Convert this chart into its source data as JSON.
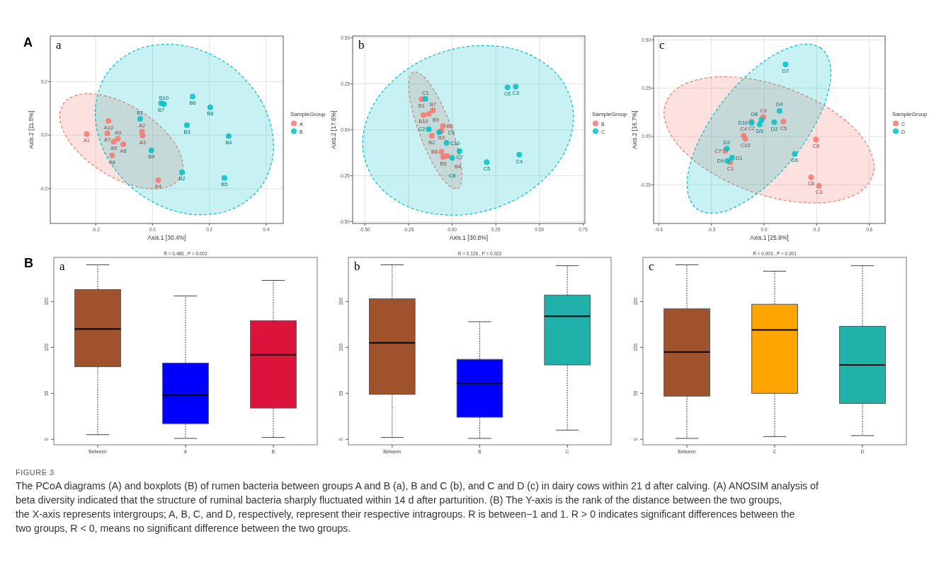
{
  "chart_data": [
    {
      "type": "scatter",
      "subtitle": "a",
      "xlabel": "Axis.1 [30.4%]",
      "ylabel": "Axis.2 [11.5%]",
      "legend_title": "SampleGroup",
      "legend": "right",
      "grid": true,
      "marker": "circle",
      "xlim": [
        -0.36,
        0.46
      ],
      "ylim": [
        -0.33,
        0.37
      ],
      "xticks": [
        -0.2,
        {
          "value": 0,
          "label": "0.0"
        },
        0.2,
        0.4
      ],
      "yticks": [
        -0.2,
        {
          "value": 0,
          "label": "0.0"
        },
        0.2
      ],
      "series": [
        {
          "type": "area",
          "marker": "none",
          "line_style": "dashed",
          "color": "#f8766d",
          "x": [
            0.107,
            0.078,
            -0.002,
            -0.11,
            -0.218,
            -0.298,
            -0.327,
            -0.298,
            -0.218,
            -0.11,
            -0.002,
            0.078
          ],
          "values": [
            -0.118,
            -0.03,
            0.06,
            0.127,
            0.155,
            0.134,
            0.072,
            -0.016,
            -0.106,
            -0.173,
            -0.201,
            -0.18
          ]
        },
        {
          "type": "area",
          "marker": "none",
          "line_style": "dashed",
          "color": "#00bfc4",
          "x": [
            0.426,
            0.384,
            0.269,
            0.112,
            -0.045,
            -0.16,
            -0.202,
            -0.16,
            -0.045,
            0.112,
            0.269,
            0.384
          ],
          "values": [
            -0.04,
            0.125,
            0.262,
            0.334,
            0.323,
            0.231,
            0.082,
            -0.083,
            -0.22,
            -0.292,
            -0.281,
            -0.189
          ]
        },
        {
          "name": "A",
          "color": "#f8766d",
          "x": [
            -0.232,
            -0.155,
            -0.159,
            -0.137,
            -0.122,
            -0.103,
            -0.142,
            -0.037,
            -0.035,
            0.02
          ],
          "values": [
            0.004,
            0.053,
            0.007,
            -0.024,
            -0.014,
            -0.034,
            -0.076,
            0.013,
            -0.002,
            -0.168
          ]
        },
        {
          "name": "B",
          "color": "#00bfc4",
          "x": [
            -0.044,
            -0.004,
            0.03,
            0.04,
            0.141,
            0.203,
            0.121,
            0.268,
            0.104,
            0.253
          ],
          "values": [
            0.061,
            -0.057,
            0.119,
            0.116,
            0.144,
            0.104,
            0.037,
            -0.004,
            -0.139,
            -0.16
          ]
        }
      ],
      "annotations": [
        "A",
        {
          "text": "A1",
          "x": -0.232,
          "y": 0.004
        },
        {
          "text": "A10",
          "x": -0.155,
          "y": 0.053
        },
        {
          "text": "A7",
          "x": -0.159,
          "y": 0.007
        },
        {
          "text": "A5",
          "x": -0.137,
          "y": -0.024
        },
        {
          "text": "A9",
          "x": -0.122,
          "y": -0.014
        },
        {
          "text": "A8",
          "x": -0.103,
          "y": -0.034
        },
        {
          "text": "A6",
          "x": -0.142,
          "y": -0.076
        },
        {
          "text": "A2",
          "x": -0.037,
          "y": 0.013
        },
        {
          "text": "A3",
          "x": -0.035,
          "y": -0.002
        },
        {
          "text": "A4",
          "x": 0.02,
          "y": -0.168
        },
        {
          "text": "B1",
          "x": -0.044,
          "y": 0.061
        },
        {
          "text": "B9",
          "x": -0.004,
          "y": -0.057
        },
        {
          "text": "B7",
          "x": 0.03,
          "y": 0.119
        },
        {
          "text": "B10",
          "x": 0.04,
          "y": 0.116
        },
        {
          "text": "B6",
          "x": 0.141,
          "y": 0.144
        },
        {
          "text": "B8",
          "x": 0.203,
          "y": 0.104
        },
        {
          "text": "B3",
          "x": 0.121,
          "y": 0.037
        },
        {
          "text": "B4",
          "x": 0.268,
          "y": -0.004
        },
        {
          "text": "B2",
          "x": 0.104,
          "y": -0.139
        },
        {
          "text": "B5",
          "x": 0.253,
          "y": -0.16
        }
      ]
    },
    {
      "type": "scatter",
      "subtitle": "b",
      "xlabel": "Axis.1 [30.8%]",
      "ylabel": "Axis.2 [17.6%]",
      "legend_title": "SampleGroup",
      "legend": "right",
      "grid": true,
      "marker": "circle",
      "xlim": [
        -0.57,
        0.76
      ],
      "ylim": [
        -0.51,
        0.51
      ],
      "xticks": [
        {
          "value": -0.5,
          "label": "-0.50"
        },
        -0.25,
        {
          "value": 0,
          "label": "0.00"
        },
        0.25,
        {
          "value": 0.5,
          "label": "0.50"
        },
        0.75
      ],
      "yticks": [
        {
          "value": -0.5,
          "label": "-0.50"
        },
        -0.25,
        {
          "value": 0,
          "label": "0.00"
        },
        0.25,
        {
          "value": 0.5,
          "label": "0.50"
        }
      ],
      "series": [
        {
          "type": "area",
          "marker": "none",
          "line_style": "dashed",
          "color": "#f8766d",
          "x": [
            0.056,
            0.036,
            -0.02,
            -0.096,
            -0.172,
            -0.228,
            -0.248,
            -0.228,
            -0.172,
            -0.096,
            -0.02,
            0.036
          ],
          "values": [
            -0.247,
            -0.111,
            0.053,
            0.203,
            0.297,
            0.311,
            0.241,
            0.105,
            -0.059,
            -0.209,
            -0.303,
            -0.317
          ]
        },
        {
          "type": "area",
          "marker": "none",
          "line_style": "dashed",
          "color": "#00bfc4",
          "x": [
            0.695,
            0.614,
            0.393,
            0.091,
            -0.211,
            -0.432,
            -0.513,
            -0.432,
            -0.211,
            0.091,
            0.393,
            0.614
          ],
          "values": [
            0.067,
            0.286,
            0.428,
            0.454,
            0.358,
            0.165,
            -0.073,
            -0.292,
            -0.434,
            -0.46,
            -0.364,
            -0.17
          ]
        },
        {
          "name": "B",
          "color": "#f8766d",
          "x": [
            -0.175,
            -0.165,
            -0.134,
            -0.11,
            -0.053,
            -0.062,
            -0.116,
            -0.061,
            -0.051,
            -0.028
          ],
          "values": [
            0.166,
            0.08,
            0.087,
            0.106,
            0.02,
            -0.006,
            -0.033,
            -0.12,
            -0.148,
            -0.142
          ]
        },
        {
          "name": "C",
          "color": "#00bfc4",
          "x": [
            -0.153,
            -0.134,
            -0.074,
            -0.032,
            0.042,
            0.0,
            0.198,
            0.384,
            0.317,
            0.364
          ],
          "values": [
            0.168,
            0.003,
            -0.013,
            -0.071,
            -0.116,
            -0.153,
            -0.176,
            -0.136,
            0.231,
            0.235
          ]
        }
      ],
      "annotations": [
        {
          "text": "B1",
          "x": -0.175,
          "y": 0.166
        },
        {
          "text": "B10",
          "x": -0.165,
          "y": 0.08
        },
        {
          "text": "B9",
          "x": -0.134,
          "y": 0.087
        },
        {
          "text": "B7",
          "x": -0.11,
          "y": 0.106
        },
        {
          "text": "B6",
          "x": -0.053,
          "y": 0.02
        },
        {
          "text": "B3",
          "x": -0.062,
          "y": -0.006
        },
        {
          "text": "B2",
          "x": -0.116,
          "y": -0.033
        },
        {
          "text": "B8",
          "x": -0.061,
          "y": -0.12
        },
        {
          "text": "B5",
          "x": -0.051,
          "y": -0.148
        },
        {
          "text": "B4",
          "x": -0.028,
          "y": -0.142
        },
        {
          "text": "C1",
          "x": -0.153,
          "y": 0.168
        },
        {
          "text": "C2",
          "x": -0.134,
          "y": 0.003
        },
        {
          "text": "C9",
          "x": -0.074,
          "y": -0.013
        },
        {
          "text": "C10",
          "x": -0.032,
          "y": -0.071
        },
        {
          "text": "C7",
          "x": 0.042,
          "y": -0.116
        },
        {
          "text": "C8",
          "x": 0.0,
          "y": -0.153
        },
        {
          "text": "C5",
          "x": 0.198,
          "y": -0.176
        },
        {
          "text": "C4",
          "x": 0.384,
          "y": -0.136
        },
        {
          "text": "C6",
          "x": 0.317,
          "y": 0.231
        },
        {
          "text": "C3",
          "x": 0.364,
          "y": 0.235
        }
      ]
    },
    {
      "type": "scatter",
      "subtitle": "c",
      "xlabel": "Axis.1 [25.9%]",
      "ylabel": "Axis.2 [16.7%]",
      "legend_title": "SampleGroup",
      "legend": "right",
      "grid": true,
      "marker": "circle",
      "xlim": [
        -0.63,
        0.69
      ],
      "ylim": [
        -0.45,
        0.52
      ],
      "xticks": [
        -0.6,
        -0.3,
        {
          "value": 0,
          "label": "0.0"
        },
        0.3,
        0.6
      ],
      "yticks": [
        -0.25,
        {
          "value": 0,
          "label": "0.00"
        },
        0.25,
        {
          "value": 0.5,
          "label": "0.50"
        }
      ],
      "series": [
        {
          "type": "area",
          "marker": "none",
          "line_style": "dashed",
          "color": "#f8766d",
          "x": [
            0.627,
            0.547,
            0.328,
            0.028,
            -0.272,
            -0.491,
            -0.571,
            -0.491,
            -0.272,
            0.028,
            0.328,
            0.547
          ],
          "values": [
            -0.157,
            0.01,
            0.169,
            0.279,
            0.309,
            0.252,
            0.123,
            -0.044,
            -0.203,
            -0.313,
            -0.343,
            -0.286
          ]
        },
        {
          "type": "area",
          "marker": "none",
          "line_style": "dashed",
          "color": "#00bfc4",
          "x": [
            0.381,
            0.326,
            0.176,
            -0.029,
            -0.234,
            -0.384,
            -0.439,
            -0.384,
            -0.234,
            -0.029,
            0.176,
            0.326
          ],
          "values": [
            0.33,
            0.456,
            0.47,
            0.37,
            0.182,
            -0.045,
            -0.248,
            -0.374,
            -0.389,
            -0.288,
            -0.1,
            0.127
          ]
        },
        {
          "name": "C",
          "color": "#f8766d",
          "x": [
            -0.117,
            -0.107,
            -0.222,
            -0.192,
            -0.072,
            -0.004,
            0.11,
            0.296,
            0.268,
            0.313
          ],
          "values": [
            0.005,
            -0.012,
            -0.074,
            -0.133,
            0.077,
            0.101,
            0.077,
            -0.015,
            -0.211,
            -0.255
          ]
        },
        {
          "name": "D",
          "color": "#00bfc4",
          "x": [
            0.122,
            0.088,
            0.058,
            -0.025,
            -0.015,
            -0.071,
            -0.213,
            -0.209,
            -0.183,
            0.175
          ],
          "values": [
            0.374,
            0.133,
            0.074,
            0.062,
            0.086,
            0.072,
            -0.063,
            -0.127,
            -0.11,
            -0.09
          ]
        }
      ],
      "annotations": [
        {
          "text": "C4",
          "x": -0.117,
          "y": 0.005
        },
        {
          "text": "C10",
          "x": -0.107,
          "y": -0.012
        },
        {
          "text": "C7",
          "x": -0.222,
          "y": -0.074
        },
        {
          "text": "C1",
          "x": -0.192,
          "y": -0.133
        },
        {
          "text": "C2",
          "x": -0.072,
          "y": 0.077
        },
        {
          "text": "C9",
          "x": -0.004,
          "y": 0.101
        },
        {
          "text": "C5",
          "x": 0.11,
          "y": 0.077
        },
        {
          "text": "C8",
          "x": 0.296,
          "y": -0.015
        },
        {
          "text": "C6",
          "x": 0.268,
          "y": -0.211
        },
        {
          "text": "C3",
          "x": 0.313,
          "y": -0.255
        },
        {
          "text": "D7",
          "x": 0.122,
          "y": 0.374
        },
        {
          "text": "D4",
          "x": 0.088,
          "y": 0.133
        },
        {
          "text": "D3",
          "x": 0.058,
          "y": 0.074
        },
        {
          "text": "D5",
          "x": -0.025,
          "y": 0.062
        },
        {
          "text": "D8",
          "x": -0.015,
          "y": 0.086
        },
        {
          "text": "D10",
          "x": -0.071,
          "y": 0.072
        },
        {
          "text": "D2",
          "x": -0.213,
          "y": -0.063
        },
        {
          "text": "D9",
          "x": -0.209,
          "y": -0.127
        },
        {
          "text": "D1",
          "x": -0.183,
          "y": -0.11
        },
        {
          "text": "D6",
          "x": 0.175,
          "y": -0.09
        }
      ]
    },
    {
      "type": "box",
      "title": "R = 0.486 , P = 0.002",
      "subtitle": "a",
      "annotations": [
        "B"
      ],
      "categories": [
        "Between",
        "A",
        "B"
      ],
      "colors": [
        "#a0522d",
        "#0000ff",
        "#dc143c"
      ],
      "ylim": [
        -6,
        198
      ],
      "yticks": [
        0,
        50,
        100,
        150
      ],
      "boxes": [
        {
          "low": 5,
          "q1": 79,
          "median": 120,
          "q3": 163,
          "high": 190
        },
        {
          "low": 1,
          "q1": 17,
          "median": 48,
          "q3": 83,
          "high": 156
        },
        {
          "low": 2,
          "q1": 34,
          "median": 92,
          "q3": 129,
          "high": 173
        }
      ]
    },
    {
      "type": "box",
      "title": "R = 0.126 , P = 0.022",
      "subtitle": "b",
      "categories": [
        "Between",
        "B",
        "C"
      ],
      "colors": [
        "#a0522d",
        "#0000ff",
        "#20b2aa"
      ],
      "ylim": [
        -6,
        198
      ],
      "yticks": [
        0,
        50,
        100,
        150
      ],
      "boxes": [
        {
          "low": 2,
          "q1": 49,
          "median": 105,
          "q3": 153,
          "high": 190
        },
        {
          "low": 1,
          "q1": 24,
          "median": 61,
          "q3": 87,
          "high": 128
        },
        {
          "low": 10,
          "q1": 81,
          "median": 134,
          "q3": 157,
          "high": 189
        }
      ]
    },
    {
      "type": "box",
      "title": "R = 0.003 , P = 0.301",
      "subtitle": "c",
      "categories": [
        "Between",
        "C",
        "D"
      ],
      "colors": [
        "#a0522d",
        "#ffa500",
        "#20b2aa"
      ],
      "ylim": [
        -6,
        198
      ],
      "yticks": [
        0,
        50,
        100,
        150
      ],
      "boxes": [
        {
          "low": 1,
          "q1": 47,
          "median": 95,
          "q3": 142,
          "high": 190
        },
        {
          "low": 3,
          "q1": 50,
          "median": 119,
          "q3": 147,
          "high": 183
        },
        {
          "low": 4,
          "q1": 39,
          "median": 81,
          "q3": 123,
          "high": 189
        }
      ]
    },
    {
      "type": "other",
      "title": "FIGURE 3",
      "annotations": [
        "The PCoA diagrams (A) and boxplots (B) of rumen bacteria between groups A and B (a), B and C (b), and C and D (c) in dairy cows within 21 d after calving. (A) ANOSIM analysis of beta diversity indicated that the structure of ruminal bacteria sharply fluctuated within 14 d after parturition. (B) The Y-axis is the rank of the distance between the two groups, the X-axis represents intergroups; A, B, C, and D, respectively, represent their respective intragroups. R is between−1 and 1. R > 0 indicates significant differences between the two groups, R < 0, means no significant difference between the two groups."
      ]
    }
  ]
}
